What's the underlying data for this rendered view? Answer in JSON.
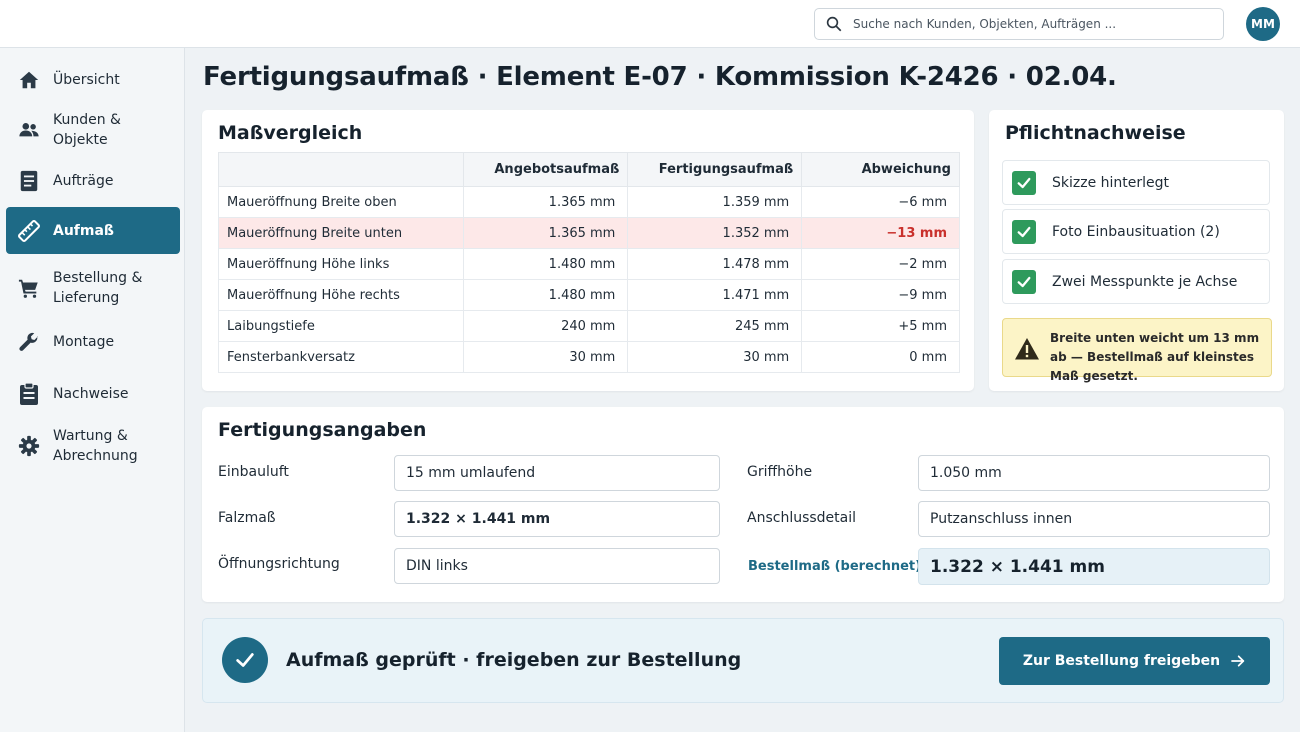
{
  "header": {
    "search_placeholder": "Suche nach Kunden, Objekten, Aufträgen ...",
    "avatar_initials": "MM"
  },
  "sidebar": {
    "items": [
      {
        "label": "Übersicht",
        "icon": "home-icon"
      },
      {
        "label": "Kunden & Objekte",
        "icon": "users-icon"
      },
      {
        "label": "Aufträge",
        "icon": "document-icon"
      },
      {
        "label": "Aufmaß",
        "icon": "ruler-icon",
        "active": true
      },
      {
        "label": "Bestellung & Lieferung",
        "icon": "cart-icon"
      },
      {
        "label": "Montage",
        "icon": "wrench-icon"
      },
      {
        "label": "Nachweise",
        "icon": "clipboard-icon"
      },
      {
        "label": "Wartung & Abrechnung",
        "icon": "gear-icon"
      }
    ]
  },
  "page": {
    "title": "Fertigungsaufmaß · Element E-07 · Kommission K-2426 · 02.04."
  },
  "comparison": {
    "title": "Maßvergleich",
    "headers": [
      "",
      "Angebotsaufmaß",
      "Fertigungsaufmaß",
      "Abweichung"
    ],
    "rows": [
      {
        "label": "Maueröffnung Breite oben",
        "offer": "1.365 mm",
        "production": "1.359 mm",
        "deviation": "−6 mm"
      },
      {
        "label": "Maueröffnung Breite unten",
        "offer": "1.365 mm",
        "production": "1.352 mm",
        "deviation": "−13 mm",
        "warn": true
      },
      {
        "label": "Maueröffnung Höhe links",
        "offer": "1.480 mm",
        "production": "1.478 mm",
        "deviation": "−2 mm"
      },
      {
        "label": "Maueröffnung Höhe rechts",
        "offer": "1.480 mm",
        "production": "1.471 mm",
        "deviation": "−9 mm"
      },
      {
        "label": "Laibungstiefe",
        "offer": "240 mm",
        "production": "245 mm",
        "deviation": "+5 mm"
      },
      {
        "label": "Fensterbankversatz",
        "offer": "30 mm",
        "production": "30 mm",
        "deviation": "0 mm"
      }
    ]
  },
  "evidence": {
    "title": "Pflichtnachweise",
    "items": [
      "Skizze hinterlegt",
      "Foto Einbausituation (2)",
      "Zwei Messpunkte je Achse"
    ],
    "alert": "Breite unten weicht um 13 mm ab — Bestellmaß auf kleinstes Maß gesetzt."
  },
  "production": {
    "title": "Fertigungsangaben",
    "einbauluft_label": "Einbauluft",
    "einbauluft_value": "15 mm umlaufend",
    "falzmass_label": "Falzmaß",
    "falzmass_value": "1.322 × 1.441 mm",
    "oeffnung_label": "Öffnungsrichtung",
    "oeffnung_value": "DIN links",
    "griffhoehe_label": "Griffhöhe",
    "griffhoehe_value": "1.050 mm",
    "anschluss_label": "Anschlussdetail",
    "anschluss_value": "Putzanschluss innen",
    "bestellmass_label": "Bestellmaß (berechnet)",
    "bestellmass_value": "1.322 × 1.441 mm"
  },
  "approval": {
    "status": "Aufmaß geprüft · freigeben zur Bestellung",
    "button_label": "Zur Bestellung freigeben"
  },
  "colors": {
    "accent": "#1e6a86",
    "success": "#2e9a5c",
    "warning_bg": "#fcf4c7",
    "error": "#c9302c"
  }
}
